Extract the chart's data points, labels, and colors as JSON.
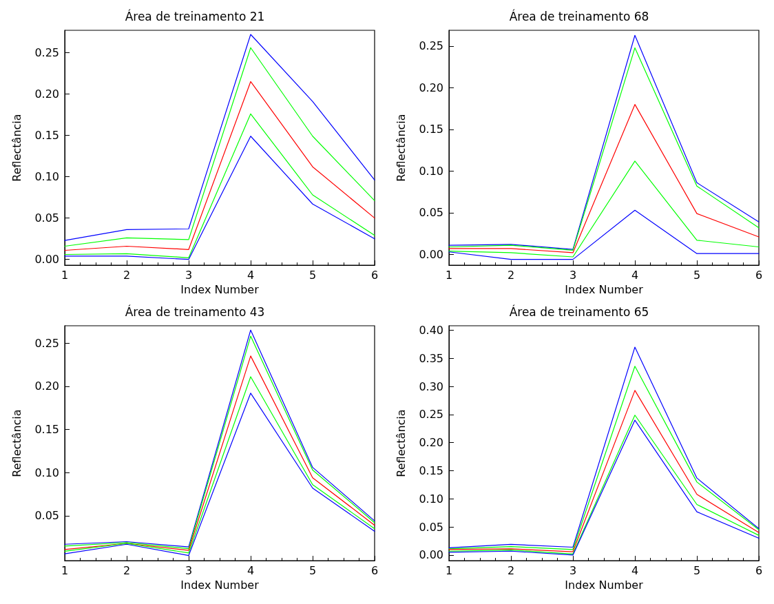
{
  "chart_data": [
    {
      "type": "line",
      "title": "Área de treinamento 21",
      "xlabel": "Index Number",
      "ylabel": "Reflectância",
      "x": [
        1,
        2,
        3,
        4,
        5,
        6
      ],
      "xlim": [
        1,
        6
      ],
      "xticks": [
        1,
        2,
        3,
        4,
        5,
        6
      ],
      "ylim": [
        -0.007,
        0.277
      ],
      "yticks": [
        {
          "value": 0,
          "label": "0.00"
        },
        {
          "value": 0.05,
          "label": "0.05"
        },
        {
          "value": 0.1,
          "label": "0.10"
        },
        {
          "value": 0.15,
          "label": "0.15"
        },
        {
          "value": 0.2,
          "label": "0.20"
        },
        {
          "value": 0.25,
          "label": "0.25"
        }
      ],
      "grid": false,
      "marker": "none",
      "line_style": "solid",
      "series": [
        {
          "color": "#0000ff",
          "values": [
            0.023,
            0.036,
            0.037,
            0.272,
            0.191,
            0.096
          ]
        },
        {
          "color": "#00ff00",
          "values": [
            0.016,
            0.026,
            0.024,
            0.256,
            0.149,
            0.071
          ]
        },
        {
          "color": "#ff0000",
          "values": [
            0.011,
            0.016,
            0.012,
            0.215,
            0.112,
            0.05
          ]
        },
        {
          "color": "#00ff00",
          "values": [
            0.006,
            0.007,
            0.002,
            0.176,
            0.078,
            0.029
          ]
        },
        {
          "color": "#0000ff",
          "values": [
            0.004,
            0.004,
            0.0,
            0.149,
            0.067,
            0.025
          ]
        }
      ]
    },
    {
      "type": "line",
      "title": "Área de treinamento 68",
      "xlabel": "Index Number",
      "ylabel": "Reflectância",
      "x": [
        1,
        2,
        3,
        4,
        5,
        6
      ],
      "xlim": [
        1,
        6
      ],
      "xticks": [
        1,
        2,
        3,
        4,
        5,
        6
      ],
      "ylim": [
        -0.013,
        0.269
      ],
      "yticks": [
        {
          "value": 0,
          "label": "0.00"
        },
        {
          "value": 0.05,
          "label": "0.05"
        },
        {
          "value": 0.1,
          "label": "0.10"
        },
        {
          "value": 0.15,
          "label": "0.15"
        },
        {
          "value": 0.2,
          "label": "0.20"
        },
        {
          "value": 0.25,
          "label": "0.25"
        }
      ],
      "grid": false,
      "marker": "none",
      "line_style": "solid",
      "series": [
        {
          "color": "#0000ff",
          "values": [
            0.011,
            0.012,
            0.006,
            0.263,
            0.086,
            0.039
          ]
        },
        {
          "color": "#00ff00",
          "values": [
            0.009,
            0.011,
            0.005,
            0.248,
            0.082,
            0.032
          ]
        },
        {
          "color": "#ff0000",
          "values": [
            0.007,
            0.007,
            0.002,
            0.18,
            0.049,
            0.021
          ]
        },
        {
          "color": "#00ff00",
          "values": [
            0.004,
            0.002,
            -0.003,
            0.112,
            0.017,
            0.009
          ]
        },
        {
          "color": "#0000ff",
          "values": [
            0.003,
            -0.006,
            -0.006,
            0.053,
            0.001,
            0.001
          ]
        }
      ]
    },
    {
      "type": "line",
      "title": "Área de treinamento 43",
      "xlabel": "Index Number",
      "ylabel": "Reflectância",
      "x": [
        1,
        2,
        3,
        4,
        5,
        6
      ],
      "xlim": [
        1,
        6
      ],
      "xticks": [
        1,
        2,
        3,
        4,
        5,
        6
      ],
      "ylim": [
        -0.002,
        0.27
      ],
      "yticks": [
        {
          "value": 0.05,
          "label": "0.05"
        },
        {
          "value": 0.1,
          "label": "0.10"
        },
        {
          "value": 0.15,
          "label": "0.15"
        },
        {
          "value": 0.2,
          "label": "0.20"
        },
        {
          "value": 0.25,
          "label": "0.25"
        }
      ],
      "grid": false,
      "marker": "none",
      "line_style": "solid",
      "series": [
        {
          "color": "#0000ff",
          "values": [
            0.017,
            0.02,
            0.014,
            0.265,
            0.106,
            0.044
          ]
        },
        {
          "color": "#00ff00",
          "values": [
            0.015,
            0.019,
            0.012,
            0.258,
            0.103,
            0.042
          ]
        },
        {
          "color": "#ff0000",
          "values": [
            0.011,
            0.018,
            0.01,
            0.235,
            0.094,
            0.039
          ]
        },
        {
          "color": "#00ff00",
          "values": [
            0.009,
            0.018,
            0.007,
            0.211,
            0.086,
            0.035
          ]
        },
        {
          "color": "#0000ff",
          "values": [
            0.006,
            0.017,
            0.004,
            0.192,
            0.082,
            0.032
          ]
        }
      ]
    },
    {
      "type": "line",
      "title": "Área de treinamento 65",
      "xlabel": "Index Number",
      "ylabel": "Reflectância",
      "x": [
        1,
        2,
        3,
        4,
        5,
        6
      ],
      "xlim": [
        1,
        6
      ],
      "xticks": [
        1,
        2,
        3,
        4,
        5,
        6
      ],
      "ylim": [
        -0.01,
        0.408
      ],
      "yticks": [
        {
          "value": 0,
          "label": "0.00"
        },
        {
          "value": 0.05,
          "label": "0.05"
        },
        {
          "value": 0.1,
          "label": "0.10"
        },
        {
          "value": 0.15,
          "label": "0.15"
        },
        {
          "value": 0.2,
          "label": "0.20"
        },
        {
          "value": 0.25,
          "label": "0.25"
        },
        {
          "value": 0.3,
          "label": "0.30"
        },
        {
          "value": 0.35,
          "label": "0.35"
        },
        {
          "value": 0.4,
          "label": "0.40"
        }
      ],
      "grid": false,
      "marker": "none",
      "line_style": "solid",
      "series": [
        {
          "color": "#0000ff",
          "values": [
            0.013,
            0.019,
            0.014,
            0.37,
            0.137,
            0.047
          ]
        },
        {
          "color": "#00ff00",
          "values": [
            0.011,
            0.015,
            0.01,
            0.336,
            0.13,
            0.045
          ]
        },
        {
          "color": "#ff0000",
          "values": [
            0.01,
            0.011,
            0.006,
            0.293,
            0.108,
            0.04
          ]
        },
        {
          "color": "#00ff00",
          "values": [
            0.007,
            0.009,
            0.002,
            0.249,
            0.09,
            0.035
          ]
        },
        {
          "color": "#0000ff",
          "values": [
            0.005,
            0.007,
            0.0,
            0.24,
            0.077,
            0.03
          ]
        }
      ]
    }
  ]
}
